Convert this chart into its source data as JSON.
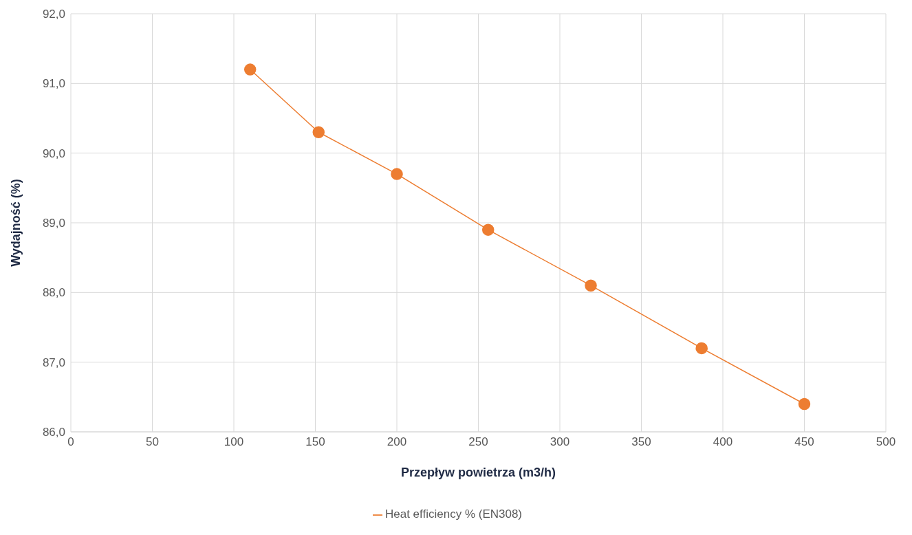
{
  "chart_data": {
    "type": "line",
    "xlabel": "Przepływ powietrza (m3/h)",
    "ylabel": "Wydajność (%)",
    "x": [
      110,
      152,
      200,
      256,
      319,
      387,
      450
    ],
    "series": [
      {
        "name": "Heat efficiency % (EN308)",
        "color": "#ed7d31",
        "values": [
          91.2,
          90.3,
          89.7,
          88.9,
          88.1,
          87.2,
          86.4
        ]
      }
    ],
    "xlim": [
      0,
      500
    ],
    "xticks": [
      0,
      50,
      100,
      150,
      200,
      250,
      300,
      350,
      400,
      450,
      500
    ],
    "ylim": [
      86,
      92
    ],
    "yticks": [
      {
        "value": 86,
        "label": "86,0"
      },
      {
        "value": 87,
        "label": "87,0"
      },
      {
        "value": 88,
        "label": "88,0"
      },
      {
        "value": 89,
        "label": "89,0"
      },
      {
        "value": 90,
        "label": "90,0"
      },
      {
        "value": 91,
        "label": "91,0"
      },
      {
        "value": 92,
        "label": "92,0"
      }
    ],
    "grid": true,
    "legend": "bottom",
    "marker": "circle",
    "line_style": "solid"
  }
}
